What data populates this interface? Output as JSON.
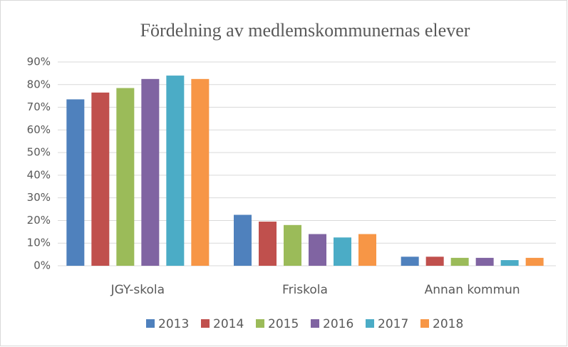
{
  "chart_data": {
    "type": "bar",
    "title": "Fördelning av medlemskommunernas elever",
    "categories": [
      "JGY-skola",
      "Friskola",
      "Annan kommun"
    ],
    "series": [
      {
        "name": "2013",
        "color": "#4f81bd",
        "values": [
          73.5,
          22.5,
          4
        ]
      },
      {
        "name": "2014",
        "color": "#c0504d",
        "values": [
          76.5,
          19.5,
          4
        ]
      },
      {
        "name": "2015",
        "color": "#9bbb59",
        "values": [
          78.5,
          18,
          3.5
        ]
      },
      {
        "name": "2016",
        "color": "#8064a2",
        "values": [
          82.5,
          14,
          3.5
        ]
      },
      {
        "name": "2017",
        "color": "#4bacc6",
        "values": [
          84,
          12.5,
          2.5
        ]
      },
      {
        "name": "2018",
        "color": "#f79646",
        "values": [
          82.5,
          14,
          3.5
        ]
      }
    ],
    "ylim": [
      0,
      90
    ],
    "yticks": [
      {
        "value": 0,
        "label": "0%"
      },
      {
        "value": 10,
        "label": "10%"
      },
      {
        "value": 20,
        "label": "20%"
      },
      {
        "value": 30,
        "label": "30%"
      },
      {
        "value": 40,
        "label": "40%"
      },
      {
        "value": 50,
        "label": "50%"
      },
      {
        "value": 60,
        "label": "60%"
      },
      {
        "value": 70,
        "label": "70%"
      },
      {
        "value": 80,
        "label": "80%"
      },
      {
        "value": 90,
        "label": "90%"
      }
    ],
    "grid": true,
    "legend": "bottom"
  }
}
